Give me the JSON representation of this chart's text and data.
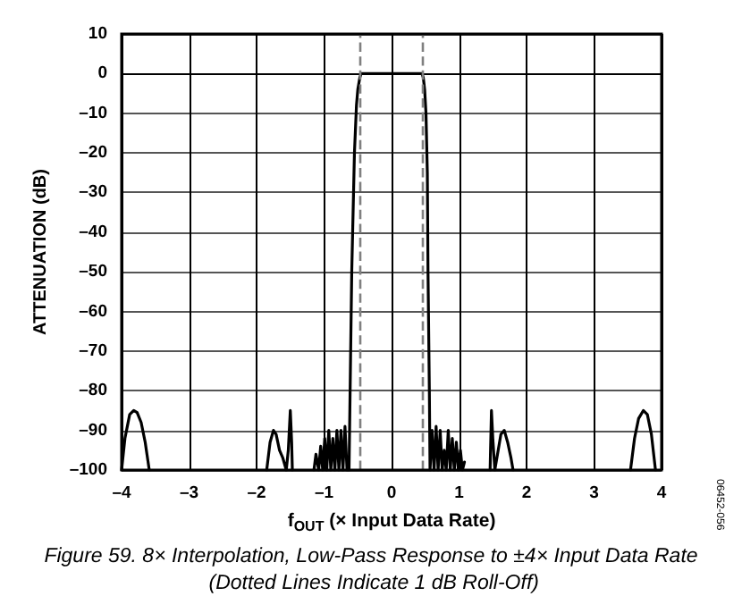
{
  "chart_data": {
    "type": "line",
    "title": "Figure 59. 8× Interpolation, Low-Pass Response to ±4× Input Data Rate (Dotted Lines Indicate 1 dB Roll-Off)",
    "xlabel": "f$_{OUT}$ (× Input Data Rate)",
    "ylabel": "ATTENUATION (dB)",
    "annotations": [
      "06452-056"
    ],
    "series": [
      {
        "color": "#000000",
        "x": [
          -4.0,
          -3.95,
          -3.88,
          -3.82,
          -3.77,
          -3.71,
          -3.65,
          -3.59,
          null,
          -1.85,
          -1.8,
          -1.75,
          -1.71,
          -1.66,
          -1.61,
          -1.56,
          -1.53,
          -1.5,
          -1.48,
          -1.47,
          null,
          -1.15,
          -1.12,
          -1.08,
          -1.05,
          -1.02,
          -0.99,
          -0.96,
          -0.93,
          -0.9,
          -0.87,
          -0.84,
          -0.81,
          -0.78,
          -0.75,
          -0.72,
          -0.69,
          -0.66,
          -0.63,
          -0.61,
          -0.59,
          -0.57,
          -0.55,
          -0.52,
          -0.5,
          -0.47,
          -0.45,
          0.0,
          0.45,
          0.47,
          0.49,
          0.51,
          0.53,
          0.54,
          0.56,
          0.57,
          0.6,
          0.63,
          0.66,
          0.69,
          0.72,
          0.75,
          0.78,
          0.81,
          0.84,
          0.87,
          0.9,
          0.93,
          0.96,
          0.99,
          1.02,
          1.05,
          1.08,
          null,
          1.46,
          1.48,
          1.5,
          1.53,
          1.57,
          1.62,
          1.67,
          1.72,
          1.77,
          1.8,
          null,
          3.54,
          3.6,
          3.66,
          3.73,
          3.79,
          3.85,
          3.91
        ],
        "values": [
          -100,
          -92,
          -86,
          -85,
          -85.5,
          -88,
          -93,
          -100,
          null,
          -100,
          -93,
          -90,
          -91,
          -95,
          -97,
          -100,
          -95,
          -85,
          -93,
          -100,
          null,
          -100,
          -96,
          -100,
          -94,
          -100,
          -92,
          -100,
          -90,
          -100,
          -92,
          -100,
          -90,
          -100,
          -90,
          -100,
          -89,
          -100,
          -100,
          -75,
          -50,
          -35,
          -20,
          -8,
          -4,
          -1,
          0,
          0,
          0,
          -1,
          -4,
          -10,
          -25,
          -50,
          -80,
          -100,
          -90,
          -100,
          -89,
          -100,
          -90,
          -100,
          -95,
          -100,
          -90,
          -100,
          -92,
          -100,
          -93,
          -100,
          -95,
          -100,
          -98,
          null,
          -100,
          -85,
          -92,
          -100,
          -96,
          -91,
          -90,
          -93,
          -97,
          -100,
          null,
          -100,
          -92,
          -87,
          -85,
          -86,
          -91,
          -100
        ]
      }
    ],
    "xlim": [
      -4,
      4
    ],
    "xticks": [
      {
        "value": -4,
        "label": "–4"
      },
      {
        "value": -3,
        "label": "–3"
      },
      {
        "value": -2,
        "label": "–2"
      },
      {
        "value": -1,
        "label": "–1"
      },
      0,
      1,
      2,
      3,
      4
    ],
    "ylim": [
      -100,
      10
    ],
    "yticks": [
      {
        "value": -100,
        "label": "–100"
      },
      {
        "value": -90,
        "label": "–90"
      },
      {
        "value": -80,
        "label": "–80"
      },
      {
        "value": -70,
        "label": "–70"
      },
      {
        "value": -60,
        "label": "–60"
      },
      {
        "value": -50,
        "label": "–50"
      },
      {
        "value": -40,
        "label": "–40"
      },
      {
        "value": -30,
        "label": "–30"
      },
      {
        "value": -20,
        "label": "–20"
      },
      {
        "value": -10,
        "label": "–10"
      },
      0,
      10
    ],
    "ref_lines": [
      {
        "axis": "x",
        "value": -0.47,
        "color": "#808080",
        "line_style": "dashed"
      },
      {
        "axis": "x",
        "value": 0.47,
        "color": "#808080",
        "line_style": "dashed"
      }
    ],
    "grid": true,
    "marker": "none",
    "line_style": "solid"
  }
}
